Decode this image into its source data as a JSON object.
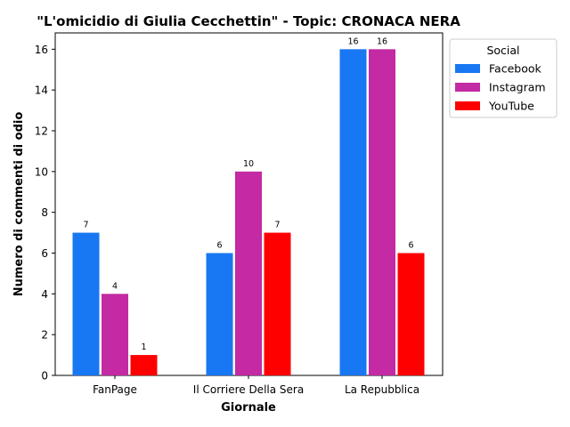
{
  "chart_data": {
    "type": "bar",
    "title": "\"L'omicidio di Giulia Cecchettin\" - Topic: CRONACA NERA",
    "xlabel": "Giornale",
    "ylabel": "Numero di commenti di odio",
    "categories": [
      "FanPage",
      "Il Corriere Della Sera",
      "La Repubblica"
    ],
    "series": [
      {
        "name": "Facebook",
        "values": [
          7,
          6,
          16
        ],
        "color": "#1877F2"
      },
      {
        "name": "Instagram",
        "values": [
          4,
          10,
          16
        ],
        "color": "#C32AA3"
      },
      {
        "name": "YouTube",
        "values": [
          1,
          7,
          6
        ],
        "color": "#FF0000"
      }
    ],
    "ylim": [
      0,
      16.8
    ],
    "yticks": [
      0,
      2,
      4,
      6,
      8,
      10,
      12,
      14,
      16
    ],
    "grid": false,
    "legend": {
      "title": "Social",
      "placement": "outside-top-right"
    }
  }
}
